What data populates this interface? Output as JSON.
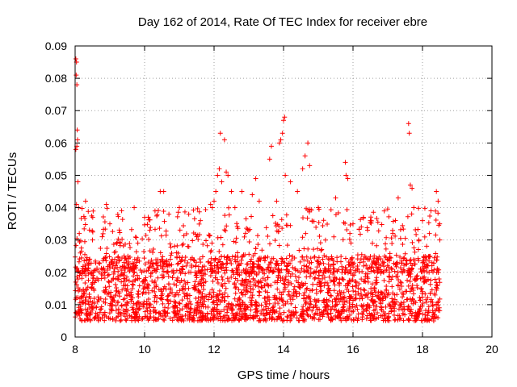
{
  "chart_data": {
    "type": "scatter",
    "title": "Day 162 of 2014, Rate Of TEC Index for receiver ebre",
    "xlabel": "GPS time / hours",
    "ylabel": "ROTI / TECUs",
    "xlim": [
      8,
      20
    ],
    "ylim": [
      0,
      0.09
    ],
    "x_ticks": [
      8,
      10,
      12,
      14,
      16,
      18,
      20
    ],
    "x_tick_labels": [
      "8",
      "10",
      "12",
      "14",
      "16",
      "18",
      "20"
    ],
    "y_ticks": [
      0,
      0.01,
      0.02,
      0.03,
      0.04,
      0.05,
      0.06,
      0.07,
      0.08,
      0.09
    ],
    "y_tick_labels": [
      "0",
      "0.01",
      "0.02",
      "0.03",
      "0.04",
      "0.05",
      "0.06",
      "0.07",
      "0.08",
      "0.09"
    ],
    "grid": true,
    "marker": "+",
    "point_color": "#ff0000",
    "series": [
      {
        "name": "ROTI",
        "points": [
          [
            8.02,
            0.086
          ],
          [
            8.04,
            0.085
          ],
          [
            8.05,
            0.078
          ],
          [
            8.03,
            0.081
          ],
          [
            8.06,
            0.064
          ],
          [
            8.07,
            0.061
          ],
          [
            8.05,
            0.059
          ],
          [
            8.02,
            0.058
          ],
          [
            8.08,
            0.048
          ],
          [
            8.04,
            0.041
          ],
          [
            8.1,
            0.04
          ],
          [
            8.12,
            0.032
          ],
          [
            8.15,
            0.026
          ],
          [
            8.3,
            0.042
          ],
          [
            8.5,
            0.03
          ],
          [
            8.9,
            0.041
          ],
          [
            9.0,
            0.035
          ],
          [
            9.3,
            0.029
          ],
          [
            9.7,
            0.04
          ],
          [
            10.0,
            0.037
          ],
          [
            10.3,
            0.039
          ],
          [
            10.45,
            0.045
          ],
          [
            10.55,
            0.045
          ],
          [
            10.7,
            0.038
          ],
          [
            11.0,
            0.04
          ],
          [
            11.5,
            0.031
          ],
          [
            11.9,
            0.041
          ],
          [
            11.95,
            0.04
          ],
          [
            12.0,
            0.042
          ],
          [
            12.05,
            0.045
          ],
          [
            12.1,
            0.05
          ],
          [
            12.15,
            0.052
          ],
          [
            12.18,
            0.063
          ],
          [
            12.22,
            0.048
          ],
          [
            12.3,
            0.061
          ],
          [
            12.35,
            0.051
          ],
          [
            12.4,
            0.05
          ],
          [
            12.5,
            0.045
          ],
          [
            12.6,
            0.04
          ],
          [
            12.8,
            0.045
          ],
          [
            13.1,
            0.044
          ],
          [
            13.2,
            0.049
          ],
          [
            13.3,
            0.042
          ],
          [
            13.6,
            0.055
          ],
          [
            13.65,
            0.059
          ],
          [
            13.8,
            0.042
          ],
          [
            13.88,
            0.06
          ],
          [
            13.92,
            0.061
          ],
          [
            13.97,
            0.063
          ],
          [
            14.0,
            0.067
          ],
          [
            14.03,
            0.068
          ],
          [
            14.05,
            0.05
          ],
          [
            14.2,
            0.048
          ],
          [
            14.4,
            0.045
          ],
          [
            14.55,
            0.052
          ],
          [
            14.62,
            0.056
          ],
          [
            14.7,
            0.06
          ],
          [
            14.75,
            0.053
          ],
          [
            15.0,
            0.04
          ],
          [
            15.5,
            0.043
          ],
          [
            15.78,
            0.054
          ],
          [
            15.8,
            0.05
          ],
          [
            15.85,
            0.049
          ],
          [
            16.0,
            0.035
          ],
          [
            16.3,
            0.037
          ],
          [
            16.5,
            0.036
          ],
          [
            16.9,
            0.039
          ],
          [
            17.3,
            0.043
          ],
          [
            17.6,
            0.066
          ],
          [
            17.62,
            0.063
          ],
          [
            17.65,
            0.047
          ],
          [
            17.7,
            0.046
          ],
          [
            17.75,
            0.04
          ],
          [
            18.0,
            0.036
          ],
          [
            18.2,
            0.032
          ],
          [
            18.4,
            0.045
          ],
          [
            18.45,
            0.042
          ],
          [
            18.5,
            0.03
          ]
        ]
      }
    ],
    "dense_band": {
      "x_range": [
        8.0,
        18.5
      ],
      "typical_min": 0.005,
      "typical_max": 0.025,
      "median": 0.012
    }
  }
}
